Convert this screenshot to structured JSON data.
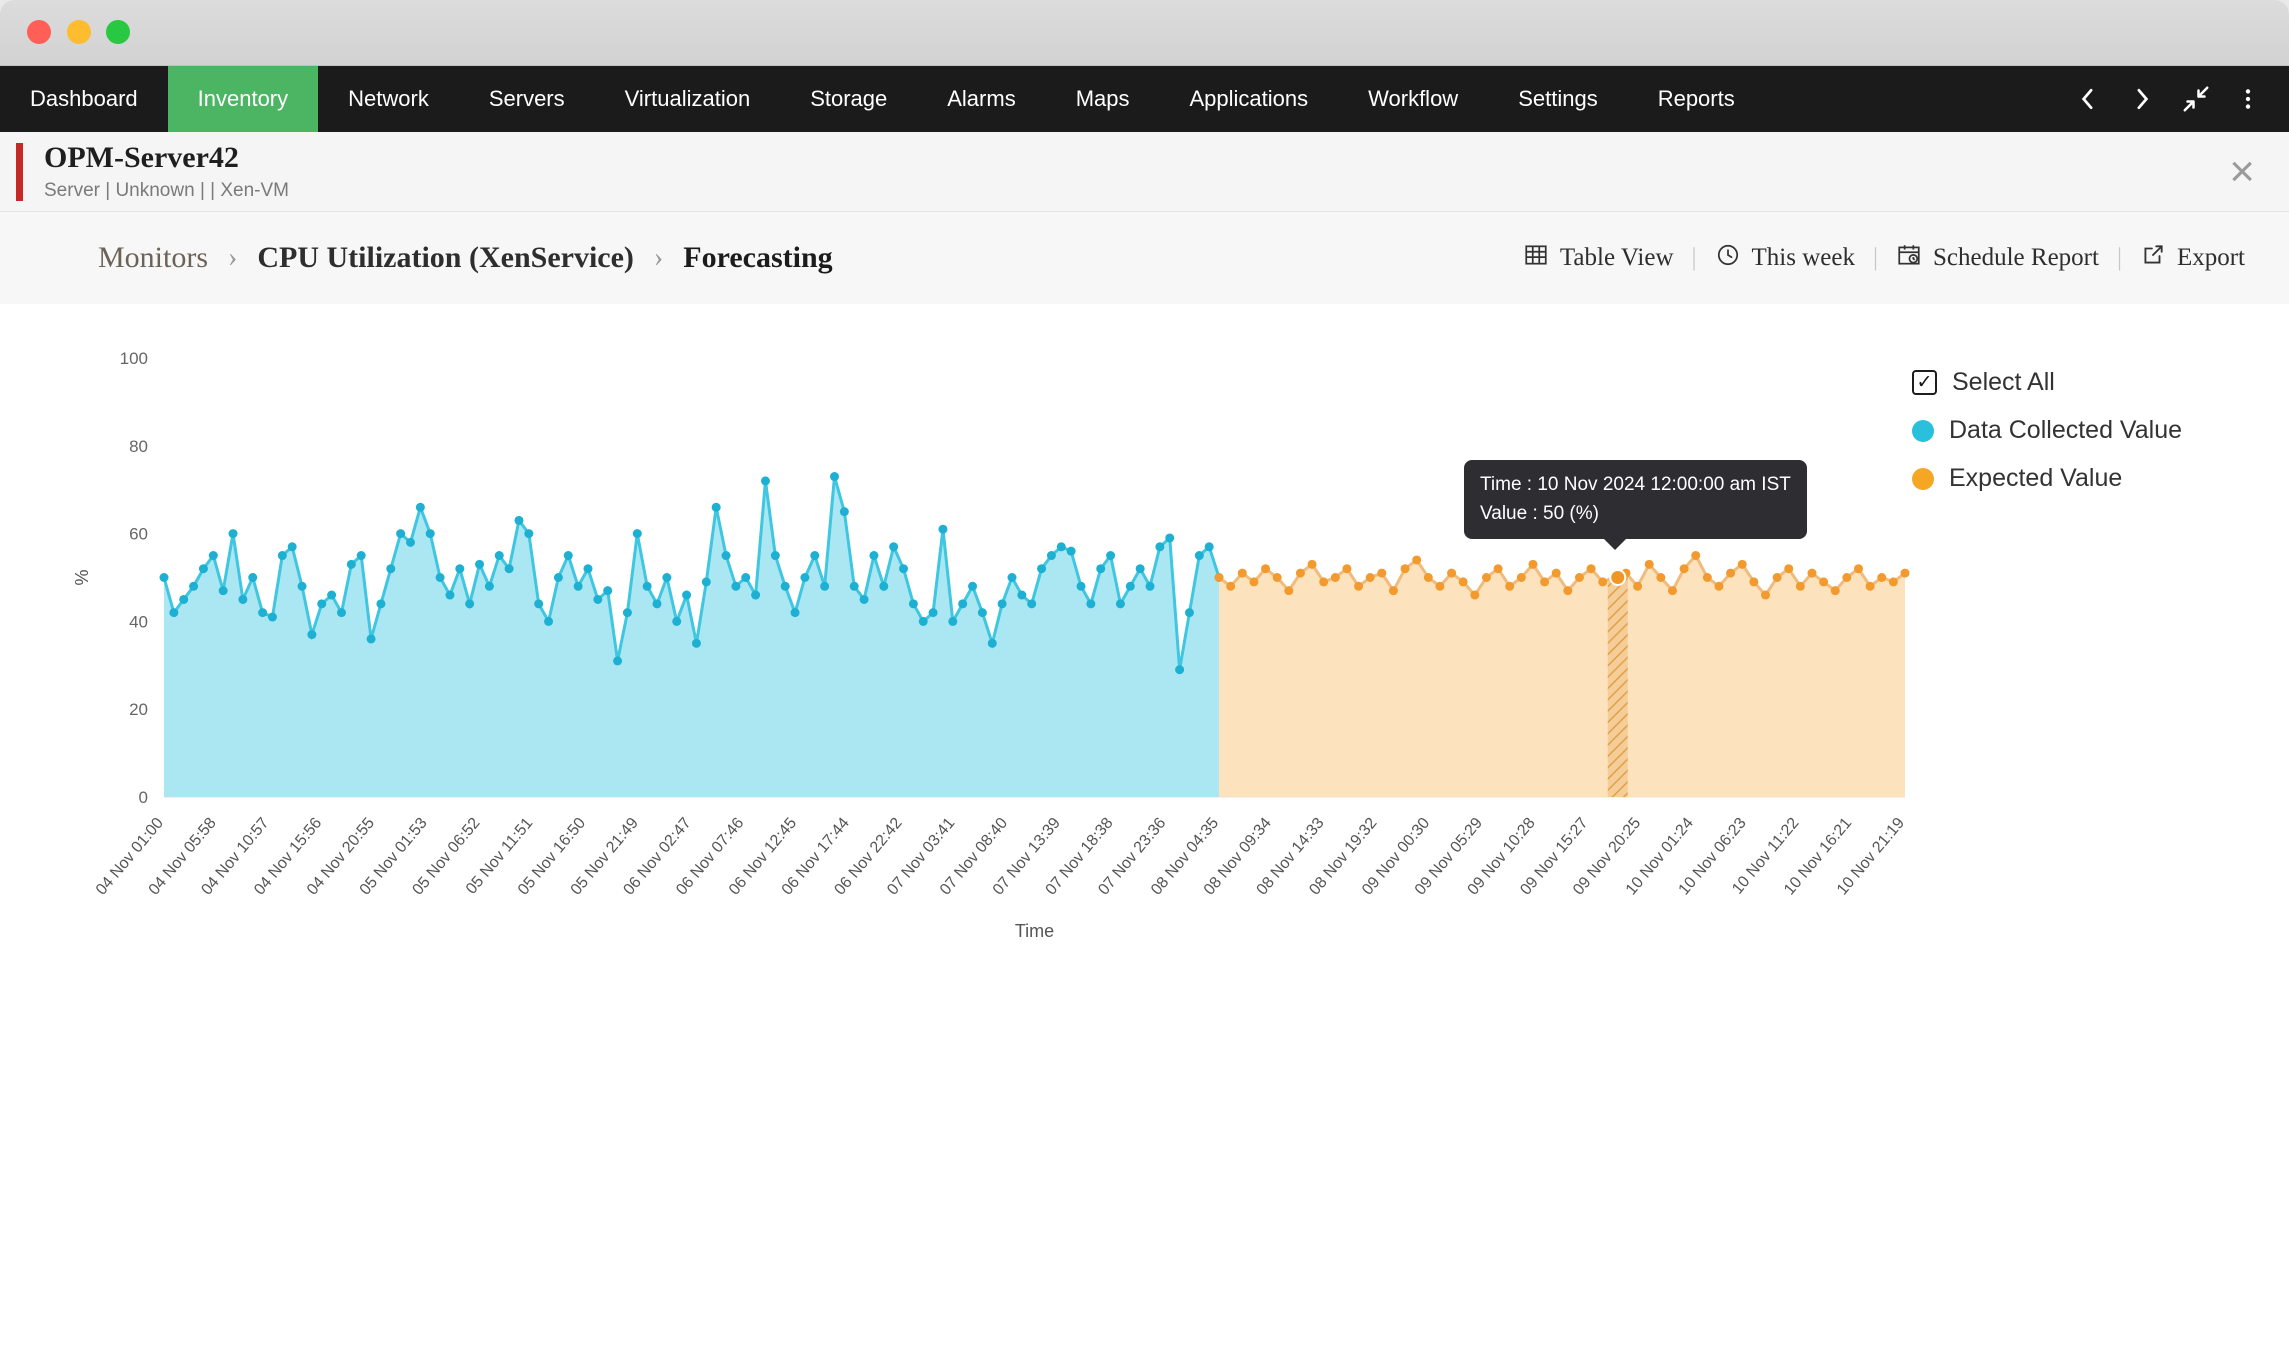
{
  "nav": {
    "items": [
      {
        "label": "Dashboard",
        "active": false
      },
      {
        "label": "Inventory",
        "active": true
      },
      {
        "label": "Network",
        "active": false
      },
      {
        "label": "Servers",
        "active": false
      },
      {
        "label": "Virtualization",
        "active": false
      },
      {
        "label": "Storage",
        "active": false
      },
      {
        "label": "Alarms",
        "active": false
      },
      {
        "label": "Maps",
        "active": false
      },
      {
        "label": "Applications",
        "active": false
      },
      {
        "label": "Workflow",
        "active": false
      },
      {
        "label": "Settings",
        "active": false
      },
      {
        "label": "Reports",
        "active": false
      }
    ],
    "active_color": "#4bb563"
  },
  "device": {
    "name": "OPM-Server42",
    "meta": "Server | Unknown |  | Xen-VM"
  },
  "breadcrumb": {
    "items": [
      "Monitors",
      "CPU Utilization (XenService)",
      "Forecasting"
    ]
  },
  "toolbar": {
    "table_view": "Table View",
    "this_week": "This week",
    "schedule_report": "Schedule Report",
    "export": "Export"
  },
  "legend": {
    "select_all": "Select All",
    "series": [
      {
        "label": "Data Collected Value",
        "color": "#29c0dd"
      },
      {
        "label": "Expected Value",
        "color": "#f5a623"
      }
    ]
  },
  "tooltip": {
    "line1": "Time : 10 Nov 2024 12:00:00 am IST",
    "line2": "Value : 50 (%)"
  },
  "chart_data": {
    "type": "area",
    "title": "CPU Utilization Forecasting",
    "xlabel": "Time",
    "ylabel": "%",
    "ylim": [
      0,
      100
    ],
    "yticks": [
      0,
      20,
      40,
      60,
      80,
      100
    ],
    "grid": false,
    "legend_position": "top-right",
    "xticklabels": [
      "04 Nov 01:00",
      "04 Nov 05:58",
      "04 Nov 10:57",
      "04 Nov 15:56",
      "04 Nov 20:55",
      "05 Nov 01:53",
      "05 Nov 06:52",
      "05 Nov 11:51",
      "05 Nov 16:50",
      "05 Nov 21:49",
      "06 Nov 02:47",
      "06 Nov 07:46",
      "06 Nov 12:45",
      "06 Nov 17:44",
      "06 Nov 22:42",
      "07 Nov 03:41",
      "07 Nov 08:40",
      "07 Nov 13:39",
      "07 Nov 18:38",
      "07 Nov 23:36",
      "08 Nov 04:35",
      "08 Nov 09:34",
      "08 Nov 14:33",
      "08 Nov 19:32",
      "09 Nov 00:30",
      "09 Nov 05:29",
      "09 Nov 10:28",
      "09 Nov 15:27",
      "09 Nov 20:25",
      "10 Nov 01:24",
      "10 Nov 06:23",
      "10 Nov 11:22",
      "10 Nov 16:21",
      "10 Nov 21:19"
    ],
    "series": [
      {
        "name": "Data Collected Value",
        "color": "#3fc6e0",
        "fill": "#abe7f3",
        "dot": "#1eb0d2",
        "x_fraction_range": [
          0,
          0.606
        ],
        "values": [
          50,
          42,
          45,
          48,
          52,
          55,
          47,
          60,
          45,
          50,
          42,
          41,
          55,
          57,
          48,
          37,
          44,
          46,
          42,
          53,
          55,
          36,
          44,
          52,
          60,
          58,
          66,
          60,
          50,
          46,
          52,
          44,
          53,
          48,
          55,
          52,
          63,
          60,
          44,
          40,
          50,
          55,
          48,
          52,
          45,
          47,
          31,
          42,
          60,
          48,
          44,
          50,
          40,
          46,
          35,
          49,
          66,
          55,
          48,
          50,
          46,
          72,
          55,
          48,
          42,
          50,
          55,
          48,
          73,
          65,
          48,
          45,
          55,
          48,
          57,
          52,
          44,
          40,
          42,
          61,
          40,
          44,
          48,
          42,
          35,
          44,
          50,
          46,
          44,
          52,
          55,
          57,
          56,
          48,
          44,
          52,
          55,
          44,
          48,
          52,
          48,
          57,
          59,
          29,
          42,
          55,
          57,
          50
        ]
      },
      {
        "name": "Expected Value",
        "color": "#f0bc7e",
        "fill": "#fce3bd",
        "dot": "#f29a2e",
        "x_fraction_range": [
          0.606,
          1.0
        ],
        "values": [
          50,
          48,
          51,
          49,
          52,
          50,
          47,
          51,
          53,
          49,
          50,
          52,
          48,
          50,
          51,
          47,
          52,
          54,
          50,
          48,
          51,
          49,
          46,
          50,
          52,
          48,
          50,
          53,
          49,
          51,
          47,
          50,
          52,
          49,
          50,
          51,
          48,
          53,
          50,
          47,
          52,
          55,
          50,
          48,
          51,
          53,
          49,
          46,
          50,
          52,
          48,
          51,
          49,
          47,
          50,
          52,
          48,
          50,
          49,
          51
        ]
      }
    ],
    "selected_point": {
      "series": "Expected Value",
      "time": "10 Nov 2024 12:00:00 am IST",
      "fraction": 0.835,
      "value": 50
    }
  }
}
